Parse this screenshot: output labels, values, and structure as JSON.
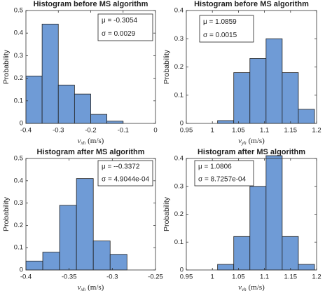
{
  "chart_data": [
    {
      "type": "histogram",
      "title": "Histogram before MS algorithm",
      "ylabel": "Probability",
      "xlabel": {
        "symbol": "v",
        "subscript": "xh",
        "unit": "(m/s)"
      },
      "annotation": [
        "μ = -0.3054",
        "σ = 0.0029"
      ],
      "bins": [
        -0.4,
        -0.35,
        -0.3,
        -0.25,
        -0.2,
        -0.15,
        -0.1
      ],
      "values": [
        0.21,
        0.44,
        0.17,
        0.13,
        0.04,
        0.01
      ],
      "color": "#6f9bd6",
      "xlim": [
        -0.4,
        0
      ],
      "xticks": [
        -0.4,
        -0.3,
        -0.2,
        -0.1,
        0
      ],
      "ylim": [
        0,
        0.5
      ],
      "yticks": [
        0,
        0.1,
        0.2,
        0.3,
        0.4,
        0.5
      ]
    },
    {
      "type": "histogram",
      "title": "Histogram before MS algorithm",
      "ylabel": "Probability",
      "xlabel": {
        "symbol": "v",
        "subscript": "yh",
        "unit": "(m/s)"
      },
      "annotation": [
        "μ = 1.0859",
        "σ = 0.0015"
      ],
      "bins": [
        1.01,
        1.041,
        1.072,
        1.103,
        1.134,
        1.165,
        1.196
      ],
      "values": [
        0.01,
        0.18,
        0.23,
        0.3,
        0.18,
        0.05
      ],
      "color": "#6f9bd6",
      "xlim": [
        0.95,
        1.2
      ],
      "xticks": [
        0.95,
        1,
        1.05,
        1.1,
        1.15,
        1.2
      ],
      "ylim": [
        0,
        0.4
      ],
      "yticks": [
        0,
        0.1,
        0.2,
        0.3,
        0.4
      ]
    },
    {
      "type": "histogram",
      "title": "Histogram after MS algorithm",
      "ylabel": "Probability",
      "xlabel": {
        "symbol": "v",
        "subscript": "xh",
        "unit": "(m/s)"
      },
      "annotation": [
        "μ = --0.3372",
        "σ = 4.9044e-04"
      ],
      "bins": [
        -0.4,
        -0.3805,
        -0.361,
        -0.3415,
        -0.322,
        -0.3025,
        -0.283
      ],
      "values": [
        0.04,
        0.08,
        0.29,
        0.41,
        0.13,
        0.07
      ],
      "color": "#6f9bd6",
      "xlim": [
        -0.4,
        -0.25
      ],
      "xticks": [
        -0.4,
        -0.35,
        -0.3,
        -0.25
      ],
      "ylim": [
        0,
        0.5
      ],
      "yticks": [
        0,
        0.1,
        0.2,
        0.3,
        0.4,
        0.5
      ]
    },
    {
      "type": "histogram",
      "title": "Histogram after MS algorithm",
      "ylabel": "Probability",
      "xlabel": {
        "symbol": "v",
        "subscript": "yh",
        "unit": "(m/s)"
      },
      "annotation": [
        "μ = 1.0806",
        "σ = 8.7257e-04"
      ],
      "bins": [
        1.01,
        1.041,
        1.072,
        1.103,
        1.134,
        1.165,
        1.196
      ],
      "values": [
        0.02,
        0.12,
        0.3,
        0.41,
        0.12,
        0.02
      ],
      "color": "#6f9bd6",
      "xlim": [
        0.95,
        1.2
      ],
      "xticks": [
        0.95,
        1,
        1.05,
        1.1,
        1.15,
        1.2
      ],
      "ylim": [
        0,
        0.4
      ],
      "yticks": [
        0,
        0.1,
        0.2,
        0.3,
        0.4
      ]
    }
  ]
}
